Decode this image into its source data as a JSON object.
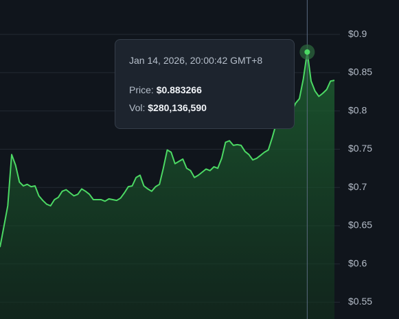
{
  "chart_data": {
    "type": "area",
    "values": [
      0.622,
      0.649,
      0.676,
      0.743,
      0.729,
      0.707,
      0.702,
      0.704,
      0.701,
      0.702,
      0.689,
      0.683,
      0.678,
      0.676,
      0.684,
      0.687,
      0.695,
      0.697,
      0.693,
      0.689,
      0.691,
      0.698,
      0.695,
      0.691,
      0.684,
      0.684,
      0.684,
      0.682,
      0.685,
      0.684,
      0.683,
      0.686,
      0.693,
      0.701,
      0.702,
      0.713,
      0.716,
      0.702,
      0.698,
      0.695,
      0.701,
      0.704,
      0.725,
      0.749,
      0.746,
      0.731,
      0.734,
      0.737,
      0.725,
      0.722,
      0.713,
      0.716,
      0.72,
      0.724,
      0.722,
      0.727,
      0.725,
      0.738,
      0.759,
      0.761,
      0.755,
      0.756,
      0.755,
      0.747,
      0.743,
      0.736,
      0.738,
      0.742,
      0.746,
      0.749,
      0.765,
      0.783,
      0.792,
      0.801,
      0.806,
      0.799,
      0.81,
      0.816,
      0.842,
      0.877,
      0.839,
      0.826,
      0.819,
      0.823,
      0.828,
      0.839,
      0.84
    ],
    "color": "#4cd964",
    "ylim": [
      0.528,
      0.945
    ],
    "yticks": [
      {
        "value": 0.55,
        "label": "$0.55"
      },
      {
        "value": 0.6,
        "label": "$0.6"
      },
      {
        "value": 0.65,
        "label": "$0.65"
      },
      {
        "value": 0.7,
        "label": "$0.7"
      },
      {
        "value": 0.75,
        "label": "$0.75"
      },
      {
        "value": 0.8,
        "label": "$0.8"
      },
      {
        "value": 0.85,
        "label": "$0.85"
      },
      {
        "value": 0.9,
        "label": "$0.9"
      }
    ],
    "grid": true,
    "tooltip": {
      "date": "Jan 14, 2026, 20:00:42 GMT+8",
      "price_label": "Price:",
      "price": "$0.883266",
      "volume_label": "Vol:",
      "volume": "$280,136,590"
    }
  }
}
